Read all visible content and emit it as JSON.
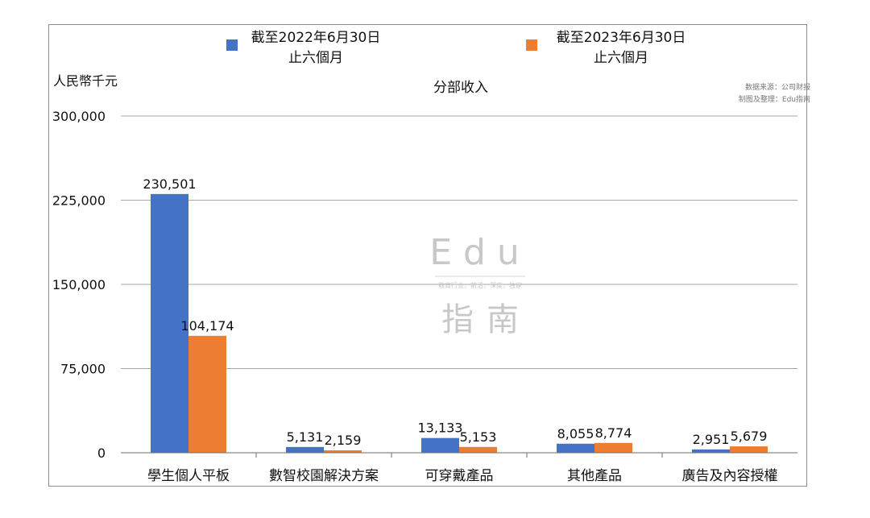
{
  "chart_data": {
    "type": "bar",
    "title": "分部收入",
    "ylabel": "人民幣千元",
    "xlabel": "",
    "ylim": [
      0,
      300000
    ],
    "yticks": [
      0,
      75000,
      150000,
      225000,
      300000
    ],
    "ytick_labels": [
      "0",
      "75,000",
      "150,000",
      "225,000",
      "300,000"
    ],
    "grid": true,
    "legend_position": "top",
    "categories": [
      "學生個人平板",
      "數智校園解決方案",
      "可穿戴產品",
      "其他產品",
      "廣告及內容授權"
    ],
    "series": [
      {
        "name": "截至2022年6月30日止六個月",
        "legend_lines": [
          "截至2022年6月30日",
          "止六個月"
        ],
        "color": "#4472C4",
        "values": [
          230501,
          5131,
          13133,
          8055,
          2951
        ],
        "labels": [
          "230,501",
          "5,131",
          "13,133",
          "8,055",
          "2,951"
        ]
      },
      {
        "name": "截至2023年6月30日止六個月",
        "legend_lines": [
          "截至2023年6月30日",
          "止六個月"
        ],
        "color": "#ED7D31",
        "values": [
          104174,
          2159,
          5153,
          8774,
          5679
        ],
        "labels": [
          "104,174",
          "2,159",
          "5,153",
          "8,774",
          "5,679"
        ]
      }
    ],
    "source_note": [
      "数据来源：公司财报",
      "制图及整理：Edu指南"
    ]
  },
  "watermark": {
    "top": "Edu",
    "tagline": "教育行业、前沿、深度、独家",
    "bottom": "指南"
  }
}
